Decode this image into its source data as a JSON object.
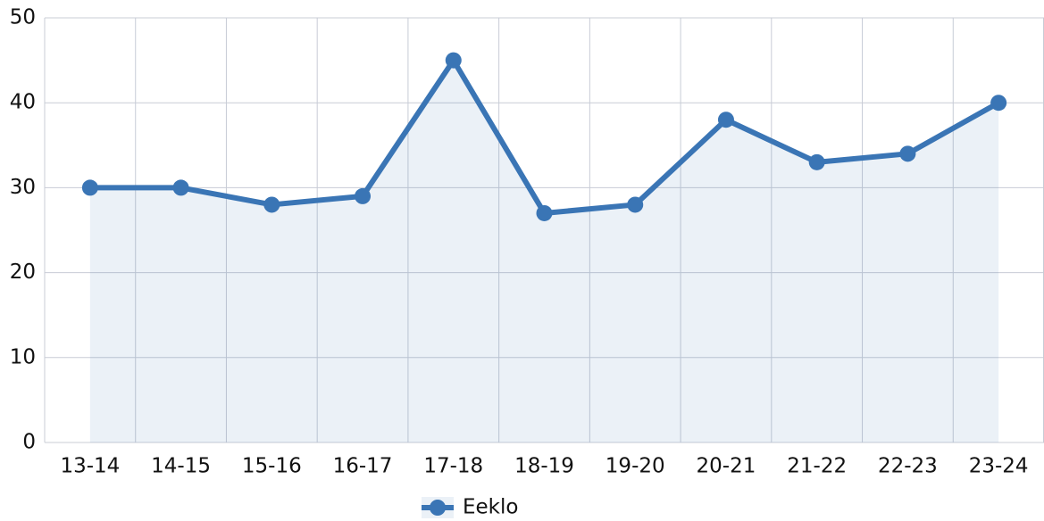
{
  "chart_data": {
    "type": "line",
    "categories": [
      "13-14",
      "14-15",
      "15-16",
      "16-17",
      "17-18",
      "18-19",
      "19-20",
      "20-21",
      "21-22",
      "22-23",
      "23-24"
    ],
    "series": [
      {
        "name": "Eeklo",
        "color": "#3a75b5",
        "values": [
          30,
          30,
          28,
          29,
          45,
          27,
          28,
          38,
          33,
          34,
          40
        ]
      }
    ],
    "ylim": [
      0,
      50
    ],
    "yticks": [
      0,
      10,
      20,
      30,
      40,
      50
    ],
    "grid": true,
    "area": true,
    "legend": "bottom"
  }
}
